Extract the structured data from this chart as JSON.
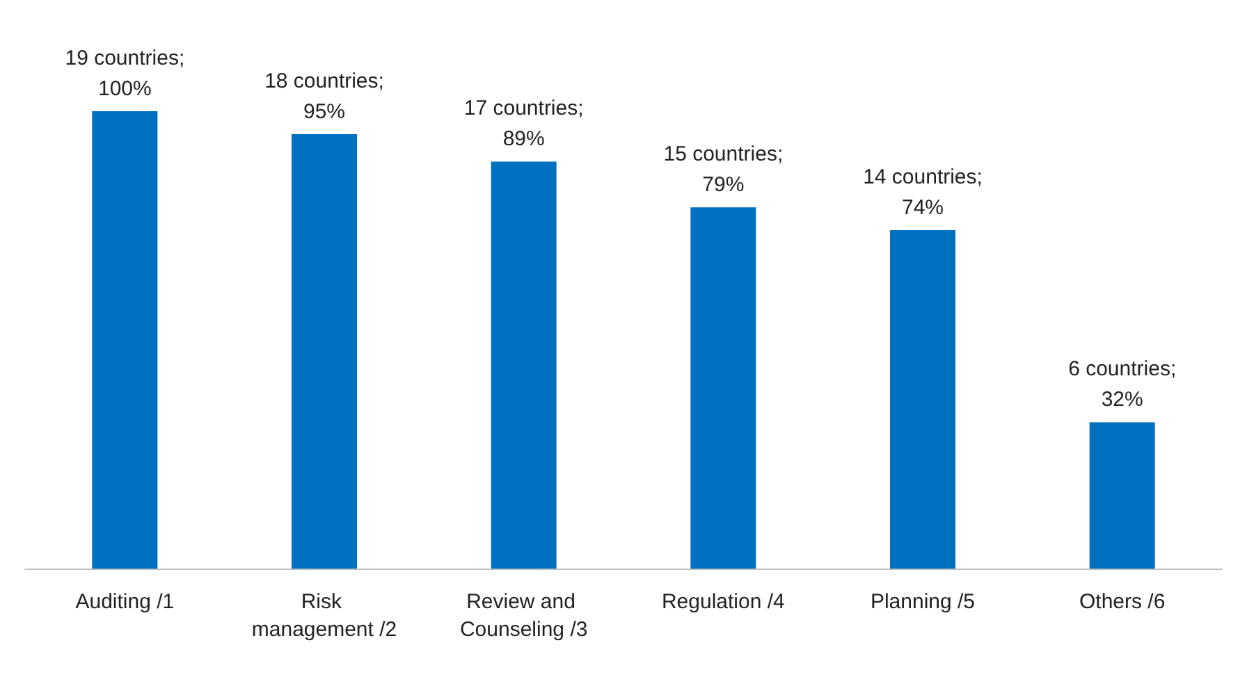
{
  "chart_data": {
    "type": "bar",
    "categories": [
      "Auditing /1",
      "Risk management /2",
      "Review and Counseling /3",
      "Regulation /4",
      "Planning /5",
      "Others /6"
    ],
    "values": [
      100,
      95,
      89,
      79,
      74,
      32
    ],
    "value_labels": [
      "19 countries;\n100%",
      "18 countries;\n95%",
      "17 countries;\n89%",
      "15 countries;\n79%",
      "14 countries;\n74%",
      "6 countries;\n32%"
    ],
    "color": "#0070c0"
  }
}
